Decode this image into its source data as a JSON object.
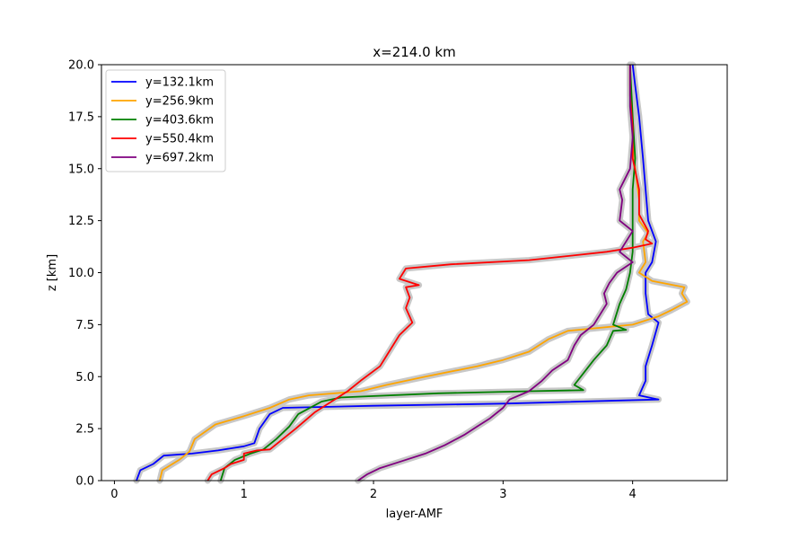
{
  "chart_data": {
    "type": "line",
    "title": "x=214.0 km",
    "xlabel": "layer-AMF",
    "ylabel": "z [km]",
    "xlim": [
      -0.1,
      4.73
    ],
    "ylim": [
      0,
      20
    ],
    "xticks": [
      0,
      1,
      2,
      3,
      4
    ],
    "yticks": [
      0.0,
      2.5,
      5.0,
      7.5,
      10.0,
      12.5,
      15.0,
      17.5,
      20.0
    ],
    "xtick_labels": [
      "0",
      "1",
      "2",
      "3",
      "4"
    ],
    "ytick_labels": [
      "0.0",
      "2.5",
      "5.0",
      "7.5",
      "10.0",
      "12.5",
      "15.0",
      "17.5",
      "20.0"
    ],
    "grid": false,
    "legend_position": "top-left",
    "uncertainty_band_color": "#c8c8c8",
    "series": [
      {
        "name": "y=132.1km",
        "color": "#0000ff",
        "points": [
          [
            0.17,
            0
          ],
          [
            0.2,
            0.5
          ],
          [
            0.3,
            0.8
          ],
          [
            0.38,
            1.2
          ],
          [
            0.6,
            1.3
          ],
          [
            0.8,
            1.45
          ],
          [
            1.0,
            1.65
          ],
          [
            1.08,
            1.8
          ],
          [
            1.12,
            2.5
          ],
          [
            1.2,
            3.2
          ],
          [
            1.3,
            3.5
          ],
          [
            2.0,
            3.6
          ],
          [
            3.0,
            3.7
          ],
          [
            4.2,
            3.9
          ],
          [
            4.05,
            4.1
          ],
          [
            4.1,
            4.8
          ],
          [
            4.1,
            5.5
          ],
          [
            4.15,
            6.5
          ],
          [
            4.2,
            7.6
          ],
          [
            4.12,
            8.0
          ],
          [
            4.1,
            9.0
          ],
          [
            4.1,
            10.0
          ],
          [
            4.15,
            10.5
          ],
          [
            4.18,
            11.5
          ],
          [
            4.12,
            12.5
          ],
          [
            4.1,
            14.0
          ],
          [
            4.08,
            15.5
          ],
          [
            4.05,
            17.5
          ],
          [
            4.02,
            19.0
          ],
          [
            4.0,
            20.0
          ]
        ]
      },
      {
        "name": "y=256.9km",
        "color": "#ffa500",
        "points": [
          [
            0.35,
            0
          ],
          [
            0.37,
            0.5
          ],
          [
            0.5,
            1.0
          ],
          [
            0.58,
            1.4
          ],
          [
            0.62,
            2.0
          ],
          [
            0.78,
            2.7
          ],
          [
            1.0,
            3.1
          ],
          [
            1.2,
            3.5
          ],
          [
            1.35,
            3.9
          ],
          [
            1.5,
            4.1
          ],
          [
            1.9,
            4.3
          ],
          [
            2.1,
            4.6
          ],
          [
            2.4,
            5.0
          ],
          [
            2.8,
            5.5
          ],
          [
            3.0,
            5.8
          ],
          [
            3.2,
            6.2
          ],
          [
            3.35,
            6.8
          ],
          [
            3.5,
            7.2
          ],
          [
            4.0,
            7.5
          ],
          [
            4.2,
            7.9
          ],
          [
            4.3,
            8.2
          ],
          [
            4.42,
            8.6
          ],
          [
            4.38,
            9.0
          ],
          [
            4.4,
            9.3
          ],
          [
            4.15,
            9.6
          ],
          [
            4.05,
            10.0
          ],
          [
            4.1,
            10.5
          ],
          [
            4.08,
            11.5
          ],
          [
            4.12,
            11.9
          ],
          [
            4.05,
            12.5
          ],
          [
            4.05,
            13.5
          ],
          [
            4.02,
            15.0
          ],
          [
            4.0,
            17.0
          ],
          [
            3.98,
            19.0
          ],
          [
            3.98,
            20.0
          ]
        ]
      },
      {
        "name": "y=403.6km",
        "color": "#008000",
        "points": [
          [
            0.82,
            0
          ],
          [
            0.85,
            0.6
          ],
          [
            0.93,
            1.0
          ],
          [
            1.05,
            1.3
          ],
          [
            1.15,
            1.5
          ],
          [
            1.25,
            2.0
          ],
          [
            1.35,
            2.6
          ],
          [
            1.42,
            3.2
          ],
          [
            1.6,
            3.8
          ],
          [
            1.75,
            4.0
          ],
          [
            2.5,
            4.2
          ],
          [
            3.2,
            4.3
          ],
          [
            3.62,
            4.35
          ],
          [
            3.55,
            4.6
          ],
          [
            3.6,
            5.0
          ],
          [
            3.7,
            5.8
          ],
          [
            3.8,
            6.5
          ],
          [
            3.85,
            7.2
          ],
          [
            3.95,
            7.25
          ],
          [
            3.85,
            7.5
          ],
          [
            3.9,
            8.5
          ],
          [
            3.95,
            9.2
          ],
          [
            3.98,
            10.0
          ],
          [
            4.0,
            11.0
          ],
          [
            4.0,
            12.5
          ],
          [
            4.0,
            14.0
          ],
          [
            4.02,
            15.5
          ],
          [
            4.0,
            17.5
          ],
          [
            3.98,
            20.0
          ]
        ]
      },
      {
        "name": "y=550.4km",
        "color": "#ff0000",
        "points": [
          [
            0.72,
            0
          ],
          [
            0.75,
            0.3
          ],
          [
            0.85,
            0.6
          ],
          [
            0.9,
            0.8
          ],
          [
            1.0,
            1.0
          ],
          [
            1.0,
            1.3
          ],
          [
            1.1,
            1.45
          ],
          [
            1.2,
            1.5
          ],
          [
            1.3,
            2.0
          ],
          [
            1.4,
            2.5
          ],
          [
            1.55,
            3.3
          ],
          [
            1.7,
            3.9
          ],
          [
            1.8,
            4.3
          ],
          [
            1.9,
            4.8
          ],
          [
            2.05,
            5.5
          ],
          [
            2.1,
            6.0
          ],
          [
            2.2,
            7.0
          ],
          [
            2.3,
            7.6
          ],
          [
            2.25,
            8.3
          ],
          [
            2.28,
            8.8
          ],
          [
            2.25,
            9.3
          ],
          [
            2.35,
            9.4
          ],
          [
            2.2,
            9.7
          ],
          [
            2.25,
            10.2
          ],
          [
            2.6,
            10.4
          ],
          [
            3.2,
            10.6
          ],
          [
            3.5,
            10.8
          ],
          [
            3.8,
            11.0
          ],
          [
            4.0,
            11.2
          ],
          [
            4.15,
            11.4
          ],
          [
            4.1,
            11.6
          ],
          [
            4.12,
            12.0
          ],
          [
            4.05,
            12.8
          ],
          [
            4.05,
            14.0
          ],
          [
            4.0,
            15.5
          ],
          [
            4.0,
            17.0
          ],
          [
            3.98,
            18.5
          ],
          [
            3.98,
            20.0
          ]
        ]
      },
      {
        "name": "y=697.2km",
        "color": "#800080",
        "points": [
          [
            1.88,
            0
          ],
          [
            1.95,
            0.3
          ],
          [
            2.05,
            0.6
          ],
          [
            2.2,
            0.9
          ],
          [
            2.4,
            1.3
          ],
          [
            2.55,
            1.7
          ],
          [
            2.7,
            2.2
          ],
          [
            2.8,
            2.6
          ],
          [
            2.9,
            3.0
          ],
          [
            3.0,
            3.5
          ],
          [
            3.05,
            3.9
          ],
          [
            3.2,
            4.3
          ],
          [
            3.3,
            4.8
          ],
          [
            3.38,
            5.3
          ],
          [
            3.5,
            5.8
          ],
          [
            3.55,
            6.5
          ],
          [
            3.6,
            7.0
          ],
          [
            3.7,
            7.5
          ],
          [
            3.75,
            8.0
          ],
          [
            3.8,
            8.5
          ],
          [
            3.78,
            9.0
          ],
          [
            3.82,
            9.5
          ],
          [
            3.88,
            10.0
          ],
          [
            4.0,
            10.5
          ],
          [
            3.9,
            11.0
          ],
          [
            4.0,
            12.0
          ],
          [
            3.9,
            12.5
          ],
          [
            3.92,
            13.5
          ],
          [
            3.9,
            14.0
          ],
          [
            3.98,
            15.0
          ],
          [
            4.0,
            16.5
          ],
          [
            3.98,
            18.0
          ],
          [
            3.98,
            20.0
          ]
        ]
      }
    ]
  }
}
